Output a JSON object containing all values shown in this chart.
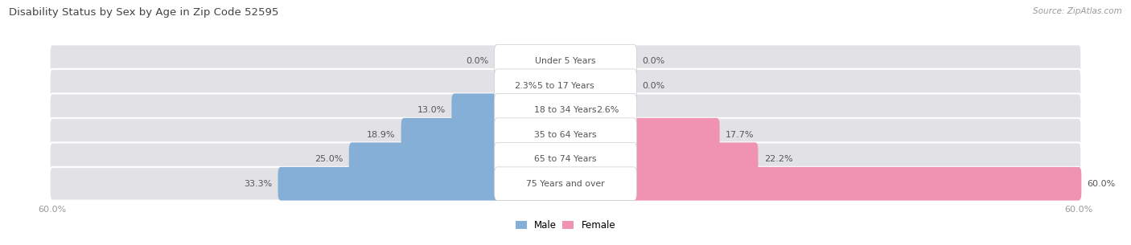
{
  "title": "Disability Status by Sex by Age in Zip Code 52595",
  "source": "Source: ZipAtlas.com",
  "categories": [
    "Under 5 Years",
    "5 to 17 Years",
    "18 to 34 Years",
    "35 to 64 Years",
    "65 to 74 Years",
    "75 Years and over"
  ],
  "male_values": [
    0.0,
    2.3,
    13.0,
    18.9,
    25.0,
    33.3
  ],
  "female_values": [
    0.0,
    0.0,
    2.6,
    17.7,
    22.2,
    60.0
  ],
  "max_val": 60.0,
  "male_color": "#85afd6",
  "female_color": "#f093b3",
  "row_bg_color": "#e2e2e6",
  "label_color": "#555555",
  "title_color": "#444444",
  "source_color": "#999999",
  "axis_label_color": "#999999",
  "legend_male": "Male",
  "legend_female": "Female",
  "x_tick_label": "60.0%"
}
